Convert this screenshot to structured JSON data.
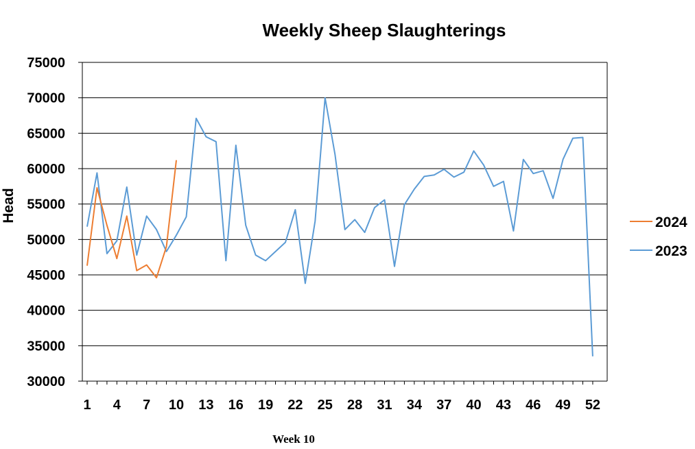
{
  "chart_data": {
    "type": "line",
    "title": "Weekly Sheep Slaughterings",
    "xlabel": "",
    "ylabel": "Head",
    "ylim": [
      30000,
      75000
    ],
    "y_ticks": [
      30000,
      35000,
      40000,
      45000,
      50000,
      55000,
      60000,
      65000,
      70000,
      75000
    ],
    "x_range": [
      1,
      52
    ],
    "x_ticks": [
      1,
      4,
      7,
      10,
      13,
      16,
      19,
      22,
      25,
      28,
      31,
      34,
      37,
      40,
      43,
      46,
      49,
      52
    ],
    "grid": "horizontal",
    "legend_position": "right",
    "series": [
      {
        "name": "2024",
        "color": "#ED7D31",
        "x": [
          1,
          2,
          3,
          4,
          5,
          6,
          7,
          8,
          9,
          10
        ],
        "values": [
          46300,
          57300,
          52000,
          47300,
          53300,
          45600,
          46400,
          44600,
          49000,
          61200
        ]
      },
      {
        "name": "2023",
        "color": "#5B9BD5",
        "x": [
          1,
          2,
          3,
          4,
          5,
          6,
          7,
          8,
          9,
          10,
          11,
          12,
          13,
          14,
          15,
          16,
          17,
          18,
          19,
          20,
          21,
          22,
          23,
          24,
          25,
          26,
          27,
          28,
          29,
          30,
          31,
          32,
          33,
          34,
          35,
          36,
          37,
          38,
          39,
          40,
          41,
          42,
          43,
          44,
          45,
          46,
          47,
          48,
          49,
          50,
          51,
          52
        ],
        "values": [
          51800,
          59400,
          48000,
          49800,
          57400,
          47800,
          53300,
          51400,
          48300,
          50600,
          53200,
          67100,
          64500,
          63800,
          47000,
          63300,
          52000,
          47800,
          47000,
          48300,
          49600,
          54200,
          43800,
          52600,
          70000,
          62000,
          51400,
          52800,
          51000,
          54500,
          55600,
          46200,
          54900,
          57100,
          58900,
          59100,
          59900,
          58800,
          59500,
          62500,
          60500,
          57500,
          58200,
          51200,
          61300,
          59300,
          59700,
          55800,
          61300,
          64300,
          64400,
          33500
        ]
      }
    ],
    "footnote": "Week 10"
  }
}
